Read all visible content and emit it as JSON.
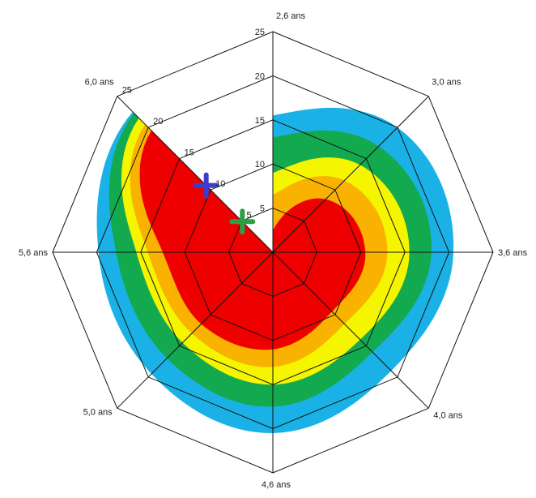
{
  "chart_data": {
    "type": "radar",
    "title": "",
    "axes": [
      "2,6 ans",
      "3,0 ans",
      "3,6 ans",
      "4,0 ans",
      "4,6 ans",
      "5,0 ans",
      "5,6 ans",
      "6,0 ans"
    ],
    "r_ticks": [
      "5",
      "10",
      "15",
      "20",
      "25"
    ],
    "r_tick_values": [
      5,
      10,
      15,
      20,
      25
    ],
    "rlim": [
      0,
      25
    ],
    "grid": true,
    "grid_rings": [
      5,
      10,
      15,
      20,
      25
    ],
    "grid_shape": "octagon",
    "bands": [
      {
        "color": "#1ab2e6",
        "values": [
          15.5,
          20,
          20.5,
          19,
          20.5,
          19.5,
          19.8,
          22.5
        ]
      },
      {
        "color": "#13a94f",
        "values": [
          13,
          17,
          18,
          16,
          17.5,
          17,
          17.8,
          22.3
        ]
      },
      {
        "color": "#f5f500",
        "values": [
          9,
          14,
          15.5,
          14,
          15,
          14.5,
          15.5,
          21.5
        ]
      },
      {
        "color": "#f9b200",
        "values": [
          6.5,
          11.5,
          13,
          11.5,
          13,
          13,
          14.2,
          20.5
        ]
      },
      {
        "color": "#ee0000",
        "values": [
          2.5,
          8.5,
          10.5,
          9.5,
          11,
          11.5,
          12.5,
          19.5
        ]
      }
    ],
    "markers": [
      {
        "shape": "plus",
        "color": "#3d3dcc",
        "axis": "6,0 ans",
        "value": 10.7
      },
      {
        "shape": "plus",
        "color": "#2e9e44",
        "axis": "6,0 ans",
        "value": 4.9
      }
    ]
  }
}
